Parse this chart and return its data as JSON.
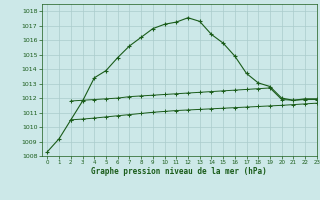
{
  "title": "Graphe pression niveau de la mer (hPa)",
  "bg_color": "#cce8e8",
  "grid_color": "#aacccc",
  "line_color": "#1a5c1a",
  "xlim": [
    -0.5,
    23
  ],
  "ylim": [
    1008,
    1018.5
  ],
  "xticks": [
    0,
    1,
    2,
    3,
    4,
    5,
    6,
    7,
    8,
    9,
    10,
    11,
    12,
    13,
    14,
    15,
    16,
    17,
    18,
    19,
    20,
    21,
    22,
    23
  ],
  "yticks": [
    1008,
    1009,
    1010,
    1011,
    1012,
    1013,
    1014,
    1015,
    1016,
    1017,
    1018
  ],
  "curve1_x": [
    0,
    1,
    2,
    3,
    4,
    5,
    6,
    7,
    8,
    9,
    10,
    11,
    12,
    13,
    14,
    15,
    16,
    17,
    18,
    19,
    20,
    21,
    22,
    23
  ],
  "curve1_y": [
    1008.3,
    1009.2,
    1010.5,
    1011.8,
    1013.4,
    1013.9,
    1014.8,
    1015.6,
    1016.2,
    1016.8,
    1017.1,
    1017.25,
    1017.55,
    1017.3,
    1016.4,
    1015.8,
    1014.9,
    1013.7,
    1013.05,
    1012.8,
    1012.0,
    1011.85,
    1011.95,
    1011.95
  ],
  "curve2_x": [
    2,
    3,
    4,
    5,
    6,
    7,
    8,
    9,
    10,
    11,
    12,
    13,
    14,
    15,
    16,
    17,
    18,
    19,
    20,
    21,
    22,
    23
  ],
  "curve2_y": [
    1011.8,
    1011.85,
    1011.9,
    1011.95,
    1012.0,
    1012.1,
    1012.15,
    1012.2,
    1012.25,
    1012.3,
    1012.35,
    1012.4,
    1012.45,
    1012.5,
    1012.55,
    1012.6,
    1012.65,
    1012.7,
    1011.9,
    1011.85,
    1011.9,
    1011.9
  ],
  "curve3_x": [
    2,
    3,
    4,
    5,
    6,
    7,
    8,
    9,
    10,
    11,
    12,
    13,
    14,
    15,
    16,
    17,
    18,
    19,
    20,
    21,
    22,
    23
  ],
  "curve3_y": [
    1010.5,
    1010.55,
    1010.62,
    1010.7,
    1010.78,
    1010.86,
    1010.94,
    1011.02,
    1011.08,
    1011.14,
    1011.18,
    1011.22,
    1011.26,
    1011.3,
    1011.34,
    1011.38,
    1011.42,
    1011.46,
    1011.5,
    1011.55,
    1011.6,
    1011.65
  ]
}
